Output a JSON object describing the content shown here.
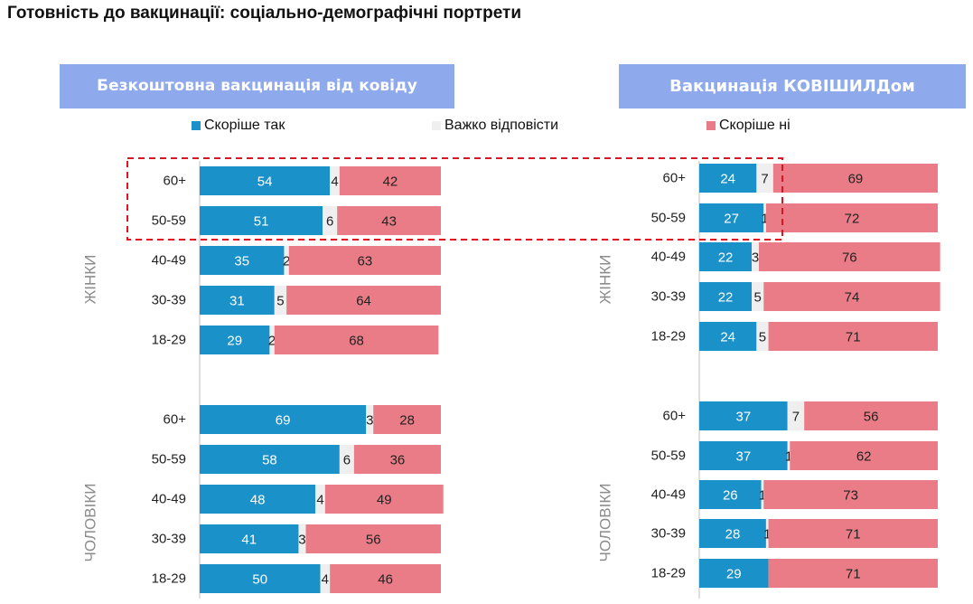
{
  "page": {
    "title": "Готовність до вакцинації: соціально-демографічні портрети"
  },
  "legend": [
    {
      "label": "Скоріше так",
      "color": "#1a91c9"
    },
    {
      "label": "Важко відповісти",
      "color": "#efefef"
    },
    {
      "label": "Скоріше ні",
      "color": "#e97c86"
    }
  ],
  "chart_data": [
    {
      "type": "bar",
      "stacked": true,
      "orientation": "horizontal",
      "title": "Безкоштовна вакцинація від ковіду",
      "xlim": [
        0,
        100
      ],
      "groups": [
        {
          "name": "ЖІНКИ",
          "categories": [
            "60+",
            "50-59",
            "40-49",
            "30-39",
            "18-29"
          ],
          "series": [
            {
              "name": "Скоріше так",
              "values": [
                54,
                51,
                35,
                31,
                29
              ]
            },
            {
              "name": "Важко відповісти",
              "values": [
                4,
                6,
                2,
                5,
                2
              ]
            },
            {
              "name": "Скоріше ні",
              "values": [
                42,
                43,
                63,
                64,
                68
              ]
            }
          ]
        },
        {
          "name": "ЧОЛОВІКИ",
          "categories": [
            "60+",
            "50-59",
            "40-49",
            "30-39",
            "18-29"
          ],
          "series": [
            {
              "name": "Скоріше так",
              "values": [
                69,
                58,
                48,
                41,
                50
              ]
            },
            {
              "name": "Важко відповісти",
              "values": [
                3,
                6,
                4,
                3,
                4
              ]
            },
            {
              "name": "Скоріше ні",
              "values": [
                28,
                36,
                49,
                56,
                46
              ]
            }
          ]
        }
      ]
    },
    {
      "type": "bar",
      "stacked": true,
      "orientation": "horizontal",
      "title": "Вакцинація КОВІШИЛДом",
      "xlim": [
        0,
        100
      ],
      "groups": [
        {
          "name": "ЖІНКИ",
          "categories": [
            "60+",
            "50-59",
            "40-49",
            "30-39",
            "18-29"
          ],
          "series": [
            {
              "name": "Скоріше так",
              "values": [
                24,
                27,
                22,
                22,
                24
              ]
            },
            {
              "name": "Важко відповісти",
              "values": [
                7,
                1,
                3,
                5,
                5
              ]
            },
            {
              "name": "Скоріше ні",
              "values": [
                69,
                72,
                76,
                74,
                71
              ]
            }
          ]
        },
        {
          "name": "ЧОЛОВІКИ",
          "categories": [
            "60+",
            "50-59",
            "40-49",
            "30-39",
            "18-29"
          ],
          "series": [
            {
              "name": "Скоріше так",
              "values": [
                37,
                37,
                26,
                28,
                29
              ]
            },
            {
              "name": "Важко відповісти",
              "values": [
                7,
                1,
                1,
                1,
                0
              ]
            },
            {
              "name": "Скоріше ні",
              "values": [
                56,
                62,
                73,
                71,
                71
              ]
            }
          ]
        }
      ]
    }
  ]
}
